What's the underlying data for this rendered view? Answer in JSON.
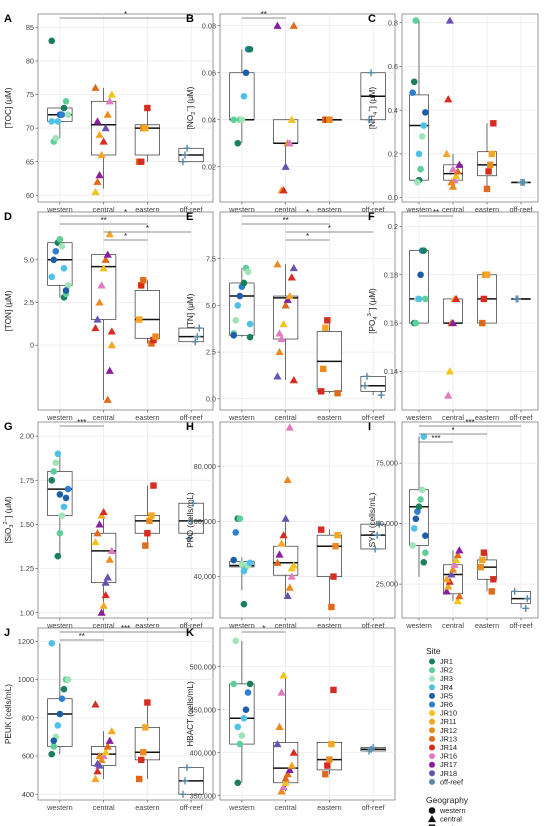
{
  "x_categories": [
    "western",
    "central",
    "eastern",
    "off-reef"
  ],
  "legend": {
    "site_title": "Site",
    "sites": [
      {
        "name": "JR1",
        "color": "#1b7f5b"
      },
      {
        "name": "JR2",
        "color": "#5fcf9a"
      },
      {
        "name": "JR3",
        "color": "#9fe3b8"
      },
      {
        "name": "JR4",
        "color": "#4fc1e8"
      },
      {
        "name": "JR5",
        "color": "#1d5ea8"
      },
      {
        "name": "JR6",
        "color": "#2f7fd0"
      },
      {
        "name": "JR10",
        "color": "#f2c31a"
      },
      {
        "name": "JR11",
        "color": "#f5a623"
      },
      {
        "name": "JR12",
        "color": "#ea8a1f"
      },
      {
        "name": "JR13",
        "color": "#e06a1a"
      },
      {
        "name": "JR14",
        "color": "#d62d20"
      },
      {
        "name": "JR16",
        "color": "#e17bbf"
      },
      {
        "name": "JR17",
        "color": "#8a1f9e"
      },
      {
        "name": "JR18",
        "color": "#6a52b3"
      },
      {
        "name": "off-reef",
        "color": "#5a88a8"
      }
    ],
    "geo_title": "Geography",
    "geographies": [
      {
        "name": "western",
        "shape": "circle"
      },
      {
        "name": "central",
        "shape": "triangle"
      },
      {
        "name": "eastern",
        "shape": "square"
      },
      {
        "name": "off-reef",
        "shape": "cross"
      }
    ]
  },
  "chart_data": [
    {
      "panel": "A",
      "ylabel": [
        "[TOC] (",
        "μ",
        "M)"
      ],
      "ylim": [
        59,
        87
      ],
      "ticks": [
        {
          "v": 60,
          "l": "60"
        },
        {
          "v": 65,
          "l": "65"
        },
        {
          "v": 70,
          "l": "70"
        },
        {
          "v": 75,
          "l": "75"
        },
        {
          "v": 80,
          "l": "80"
        },
        {
          "v": 85,
          "l": "85"
        }
      ],
      "boxes": [
        [
          68.5,
          71,
          72,
          73,
          73
        ],
        [
          61,
          66,
          70.5,
          74,
          76
        ],
        [
          65,
          66,
          70,
          70.5,
          73
        ],
        [
          65,
          65,
          66,
          67,
          67
        ]
      ],
      "points": {
        "western": [
          83,
          68,
          68.5,
          71,
          72,
          72,
          73,
          74,
          72,
          71
        ],
        "central": [
          60.5,
          62,
          63,
          66,
          68,
          70,
          72,
          74,
          75,
          76,
          71,
          69
        ],
        "eastern": [
          65,
          65,
          70,
          70,
          73
        ],
        "off-reef": [
          65,
          66,
          67
        ]
      },
      "sig": [
        {
          "from": 0,
          "to": 3,
          "label": "*"
        }
      ]
    },
    {
      "panel": "B",
      "ylabel": [
        "[NO",
        "2",
        "−",
        "] (",
        "μ",
        "M)"
      ],
      "ylim": [
        0.005,
        0.085
      ],
      "ticks": [
        {
          "v": 0.02,
          "l": "0.02"
        },
        {
          "v": 0.04,
          "l": "0.04"
        },
        {
          "v": 0.06,
          "l": "0.06"
        },
        {
          "v": 0.08,
          "l": "0.08"
        }
      ],
      "boxes": [
        [
          0.03,
          0.04,
          0.04,
          0.06,
          0.07
        ],
        [
          0.02,
          0.03,
          0.03,
          0.04,
          0.04
        ],
        [
          0.04,
          0.04,
          0.04,
          0.04,
          0.04
        ],
        [
          0.04,
          0.04,
          0.05,
          0.06,
          0.06
        ]
      ],
      "points": {
        "western": [
          0.03,
          0.04,
          0.04,
          0.05,
          0.06,
          0.07,
          0.07,
          0.04
        ],
        "central": [
          0.01,
          0.01,
          0.02,
          0.03,
          0.03,
          0.04,
          0.08,
          0.08
        ],
        "eastern": [
          0.04,
          0.04,
          0.04
        ],
        "off-reef": [
          0.04,
          0.06
        ]
      },
      "sig": [
        {
          "from": 0,
          "to": 1,
          "label": "**"
        }
      ]
    },
    {
      "panel": "C",
      "ylabel": [
        "[NH",
        "4",
        "+",
        "] (",
        "μ",
        "M)"
      ],
      "ylim": [
        -0.02,
        0.84
      ],
      "ticks": [
        {
          "v": 0,
          "l": "0.0"
        },
        {
          "v": 0.2,
          "l": "0.2"
        },
        {
          "v": 0.4,
          "l": "0.4"
        },
        {
          "v": 0.6,
          "l": "0.6"
        },
        {
          "v": 0.8,
          "l": "0.8"
        }
      ],
      "boxes": [
        [
          0.07,
          0.08,
          0.33,
          0.47,
          0.81
        ],
        [
          0.05,
          0.08,
          0.11,
          0.15,
          0.2
        ],
        [
          0.04,
          0.1,
          0.15,
          0.21,
          0.34
        ],
        [
          0.07,
          0.07,
          0.07,
          0.07,
          0.07
        ]
      ],
      "points": {
        "western": [
          0.08,
          0.13,
          0.28,
          0.33,
          0.39,
          0.48,
          0.53,
          0.81,
          0.07,
          0.2
        ],
        "central": [
          0.05,
          0.08,
          0.1,
          0.12,
          0.15,
          0.2,
          0.45,
          0.81,
          0.07,
          0.13
        ],
        "eastern": [
          0.04,
          0.12,
          0.15,
          0.2,
          0.34
        ],
        "off-reef": [
          0.07,
          0.07,
          0.07
        ]
      },
      "sig": []
    },
    {
      "panel": "D",
      "ylabel": [
        "[TON] (",
        "μ",
        "M)"
      ],
      "ylim": [
        -3.8,
        7.8
      ],
      "ticks": [
        {
          "v": 0,
          "l": "0"
        },
        {
          "v": 2.5,
          "l": "2.5"
        },
        {
          "v": 5,
          "l": "5.0"
        }
      ],
      "boxes": [
        [
          2.8,
          3.5,
          5,
          6,
          6.2
        ],
        [
          -3.2,
          1.5,
          4.6,
          5.3,
          5.3
        ],
        [
          0.1,
          0.4,
          1.5,
          3.2,
          3.8
        ],
        [
          0.2,
          0.2,
          0.5,
          1,
          1
        ]
      ],
      "points": {
        "western": [
          2.8,
          3,
          3.5,
          4,
          5,
          5.5,
          6,
          6.2,
          5.8,
          4.5,
          3.2
        ],
        "central": [
          -3.2,
          -1.5,
          0,
          1,
          1.5,
          2.5,
          3.5,
          4.5,
          5,
          5.3,
          6.5,
          0.8
        ],
        "eastern": [
          0.1,
          0.3,
          0.5,
          1.5,
          3.5,
          3.8
        ],
        "off-reef": [
          0.2,
          0.5,
          1
        ]
      },
      "sig": [
        {
          "from": 0,
          "to": 3,
          "label": "*"
        },
        {
          "from": 0,
          "to": 2,
          "label": "**"
        },
        {
          "from": 1,
          "to": 3,
          "label": "*"
        },
        {
          "from": 1,
          "to": 2,
          "label": "*"
        }
      ]
    },
    {
      "panel": "E",
      "ylabel": [
        "[TN] (",
        "μ",
        "M)"
      ],
      "ylim": [
        -0.6,
        10
      ],
      "ticks": [
        {
          "v": 0,
          "l": "0.0"
        },
        {
          "v": 2.5,
          "l": "2.5"
        },
        {
          "v": 5,
          "l": "5.0"
        },
        {
          "v": 7.5,
          "l": "7.5"
        }
      ],
      "boxes": [
        [
          3.3,
          3.4,
          5.5,
          6.2,
          7
        ],
        [
          1,
          3.2,
          5.4,
          5.5,
          7.2
        ],
        [
          0.3,
          0.4,
          2,
          3.6,
          4.2
        ],
        [
          0.2,
          0.4,
          0.7,
          1.2,
          1.2
        ]
      ],
      "points": {
        "western": [
          3.3,
          3.5,
          4.2,
          5,
          5.5,
          6,
          6.2,
          7,
          6.8,
          4,
          3.4
        ],
        "central": [
          1,
          1.2,
          2.5,
          3.2,
          4,
          5,
          5.3,
          5.5,
          6.5,
          7,
          7.2,
          3.5
        ],
        "eastern": [
          0.3,
          0.4,
          1.6,
          3.8,
          4.2
        ],
        "off-reef": [
          0.2,
          0.7,
          1.2
        ]
      },
      "sig": [
        {
          "from": 0,
          "to": 3,
          "label": "*"
        },
        {
          "from": 0,
          "to": 2,
          "label": "**"
        },
        {
          "from": 1,
          "to": 3,
          "label": "*"
        },
        {
          "from": 1,
          "to": 2,
          "label": "*"
        }
      ]
    },
    {
      "panel": "F",
      "ylabel": [
        "[PO",
        "4",
        "3−",
        "] (",
        "μ",
        "M)"
      ],
      "ylim": [
        0.124,
        0.206
      ],
      "ticks": [
        {
          "v": 0.14,
          "l": "0.14"
        },
        {
          "v": 0.16,
          "l": "0.16"
        },
        {
          "v": 0.18,
          "l": "0.18"
        },
        {
          "v": 0.2,
          "l": "0.2"
        }
      ],
      "boxes": [
        [
          0.16,
          0.16,
          0.17,
          0.19,
          0.19
        ],
        [
          0.16,
          0.16,
          0.16,
          0.17,
          0.17
        ],
        [
          0.16,
          0.16,
          0.17,
          0.18,
          0.18
        ],
        [
          0.17,
          0.17,
          0.17,
          0.17,
          0.17
        ]
      ],
      "points": {
        "western": [
          0.16,
          0.16,
          0.17,
          0.17,
          0.18,
          0.19,
          0.19,
          0.17
        ],
        "central": [
          0.13,
          0.14,
          0.16,
          0.16,
          0.17,
          0.17
        ],
        "eastern": [
          0.16,
          0.17,
          0.18,
          0.18
        ],
        "off-reef": [
          0.17,
          0.17
        ]
      },
      "sig": [
        {
          "from": 0,
          "to": 1,
          "label": "**"
        }
      ]
    },
    {
      "panel": "G",
      "ylabel": [
        "[SiO",
        "3",
        "2−",
        "] (",
        "μ",
        "M)"
      ],
      "ylim": [
        0.97,
        2.08
      ],
      "ticks": [
        {
          "v": 1,
          "l": "1.00"
        },
        {
          "v": 1.25,
          "l": "1.25"
        },
        {
          "v": 1.5,
          "l": "1.50"
        },
        {
          "v": 1.75,
          "l": "1.75"
        },
        {
          "v": 2,
          "l": "2.00"
        }
      ],
      "boxes": [
        [
          1.32,
          1.55,
          1.7,
          1.8,
          1.9
        ],
        [
          1.0,
          1.17,
          1.35,
          1.45,
          1.57
        ],
        [
          1.38,
          1.45,
          1.52,
          1.55,
          1.72
        ],
        [
          1.42,
          1.45,
          1.52,
          1.62,
          1.62
        ]
      ],
      "points": {
        "western": [
          1.32,
          1.45,
          1.55,
          1.6,
          1.65,
          1.7,
          1.75,
          1.8,
          1.85,
          1.9,
          1.67
        ],
        "central": [
          1.0,
          1.04,
          1.1,
          1.2,
          1.3,
          1.35,
          1.4,
          1.45,
          1.5,
          1.55,
          1.57,
          1.17
        ],
        "eastern": [
          1.38,
          1.45,
          1.52,
          1.55,
          1.72
        ],
        "off-reef": [
          1.42,
          1.52,
          1.62
        ]
      },
      "sig": [
        {
          "from": 0,
          "to": 1,
          "label": "***"
        }
      ]
    },
    {
      "panel": "H",
      "ylabel": [
        "PRO (cells/mL)"
      ],
      "ylim": [
        25000,
        96000
      ],
      "ticks": [
        {
          "v": 40000,
          "l": "40,000"
        },
        {
          "v": 60000,
          "l": "60,000"
        },
        {
          "v": 80000,
          "l": "80,000"
        }
      ],
      "boxes": [
        [
          35000,
          43500,
          44000,
          45500,
          47000
        ],
        [
          33000,
          40500,
          45000,
          51000,
          61000
        ],
        [
          29000,
          40000,
          51000,
          55000,
          57000
        ],
        [
          50000,
          50000,
          55000,
          59000,
          59000
        ]
      ],
      "points": {
        "western": [
          30000,
          43500,
          44000,
          45000,
          46000,
          56000,
          61000,
          61000,
          44500,
          42000
        ],
        "central": [
          33000,
          36000,
          40000,
          44000,
          45000,
          48000,
          52000,
          55000,
          61000,
          75000,
          94000,
          43000
        ],
        "eastern": [
          29000,
          40000,
          51000,
          55000,
          57000
        ],
        "off-reef": [
          50000,
          55000,
          59000
        ]
      },
      "sig": []
    },
    {
      "panel": "I",
      "ylabel": [
        "SYN (cells/mL)"
      ],
      "ylim": [
        11000,
        92000
      ],
      "ticks": [
        {
          "v": 25000,
          "l": "25,000"
        },
        {
          "v": 50000,
          "l": "50,000"
        },
        {
          "v": 75000,
          "l": "75,000"
        }
      ],
      "boxes": [
        [
          28000,
          41000,
          57000,
          64000,
          86000
        ],
        [
          18000,
          21000,
          29000,
          33000,
          39000
        ],
        [
          22000,
          27000,
          32000,
          35000,
          38000
        ],
        [
          15000,
          17000,
          19000,
          22000,
          22000
        ]
      ],
      "points": {
        "western": [
          34000,
          38000,
          41000,
          48000,
          52000,
          55000,
          57000,
          60000,
          64000,
          86000,
          45000
        ],
        "central": [
          18000,
          20000,
          22000,
          24000,
          26000,
          29000,
          31000,
          33000,
          35000,
          37000,
          39000,
          27000
        ],
        "eastern": [
          22000,
          27000,
          32000,
          35000,
          38000
        ],
        "off-reef": [
          15000,
          19000,
          22000
        ]
      },
      "sig": [
        {
          "from": 0,
          "to": 3,
          "label": "***"
        },
        {
          "from": 0,
          "to": 2,
          "label": "*"
        },
        {
          "from": 0,
          "to": 1,
          "label": "***"
        }
      ]
    },
    {
      "panel": "J",
      "ylabel": [
        "PEUK (cells/mL)"
      ],
      "ylim": [
        370,
        1270
      ],
      "ticks": [
        {
          "v": 400,
          "l": "400"
        },
        {
          "v": 600,
          "l": "600"
        },
        {
          "v": 800,
          "l": "800"
        },
        {
          "v": 1000,
          "l": "1000"
        },
        {
          "v": 1200,
          "l": "1200"
        }
      ],
      "boxes": [
        [
          610,
          650,
          820,
          900,
          1190
        ],
        [
          480,
          550,
          610,
          650,
          730
        ],
        [
          480,
          580,
          620,
          750,
          880
        ],
        [
          400,
          400,
          470,
          540,
          540
        ]
      ],
      "points": {
        "western": [
          610,
          650,
          700,
          760,
          820,
          900,
          950,
          1000,
          1000,
          1190,
          680
        ],
        "central": [
          480,
          520,
          550,
          580,
          600,
          620,
          650,
          680,
          730,
          870,
          560,
          600
        ],
        "eastern": [
          480,
          580,
          620,
          750,
          880
        ],
        "off-reef": [
          400,
          470,
          540
        ]
      },
      "sig": [
        {
          "from": 0,
          "to": 3,
          "label": "***"
        },
        {
          "from": 0,
          "to": 1,
          "label": "**"
        }
      ]
    },
    {
      "panel": "K",
      "ylabel": [
        "HBACT (cells/mL)"
      ],
      "ylim": [
        345000,
        545000
      ],
      "ticks": [
        {
          "v": 350000,
          "l": "350,000"
        },
        {
          "v": 400000,
          "l": "400,000"
        },
        {
          "v": 450000,
          "l": "450,000"
        },
        {
          "v": 500000,
          "l": "500,000"
        }
      ],
      "boxes": [
        [
          365000,
          410000,
          440000,
          480000,
          530000
        ],
        [
          355000,
          365000,
          382000,
          412000,
          490000
        ],
        [
          375000,
          380000,
          392000,
          412000,
          412000
        ],
        [
          402000,
          402000,
          404000,
          406000,
          406000
        ]
      ],
      "points": {
        "western": [
          365000,
          410000,
          420000,
          440000,
          450000,
          470000,
          480000,
          480000,
          530000,
          430000
        ],
        "central": [
          355000,
          360000,
          365000,
          375000,
          380000,
          385000,
          400000,
          410000,
          430000,
          470000,
          490000,
          370000
        ],
        "eastern": [
          375000,
          385000,
          392000,
          410000,
          473000
        ],
        "off-reef": [
          402000,
          404000,
          406000
        ]
      },
      "sig": [
        {
          "from": 0,
          "to": 1,
          "label": "*"
        }
      ]
    }
  ]
}
